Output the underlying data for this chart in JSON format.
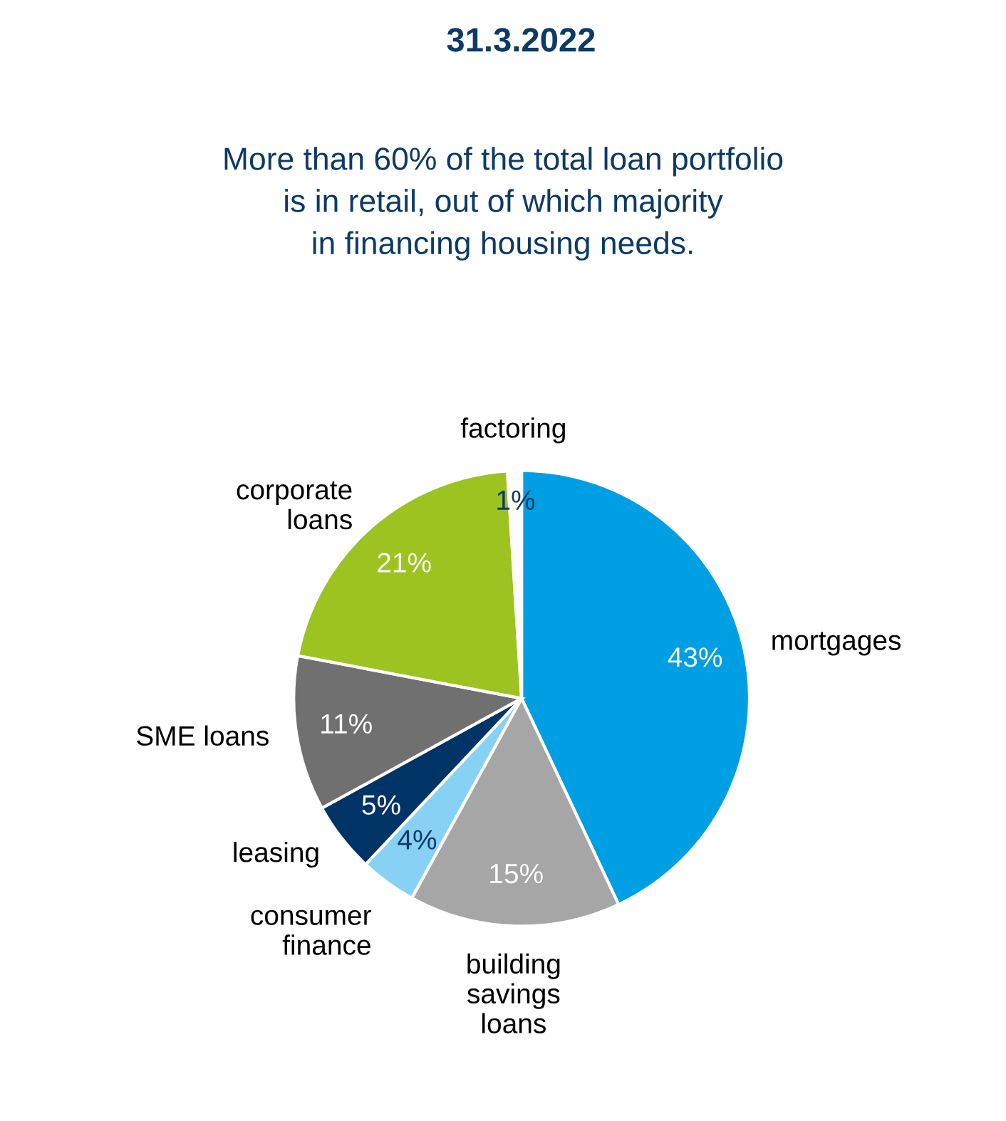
{
  "chart_data": {
    "type": "pie",
    "title": "31.3.2022",
    "subtitle": "More than 60% of the total loan portfolio\nis in retail, out of which majority\nin financing housing needs.",
    "categories": [
      "mortgages",
      "building\nsavings\nloans",
      "consumer\nfinance",
      "leasing",
      "SME loans",
      "corporate\nloans",
      "factoring"
    ],
    "values": [
      43,
      15,
      4,
      5,
      11,
      21,
      1
    ],
    "value_labels": [
      "43%",
      "15%",
      "4%",
      "5%",
      "11%",
      "21%",
      "1%"
    ],
    "colors": [
      "#009fe3",
      "#a6a6a6",
      "#87d1f5",
      "#003366",
      "#707070",
      "#9cc31f",
      "#ffffff"
    ],
    "legend": false
  }
}
